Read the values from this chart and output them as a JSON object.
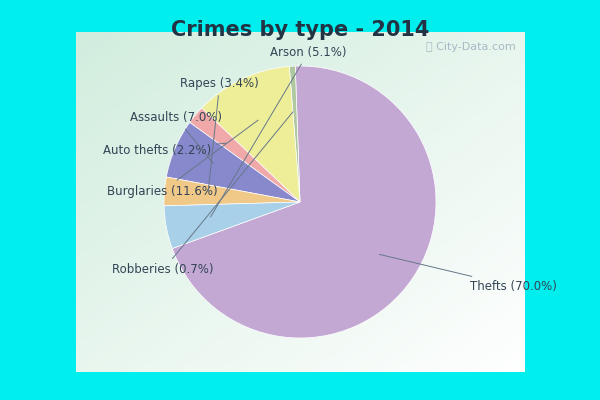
{
  "title": "Crimes by type - 2014",
  "slices": [
    {
      "label": "Thefts",
      "pct": 70.0,
      "color": "#C4A8D4"
    },
    {
      "label": "Robberies",
      "pct": 0.7,
      "color": "#B0C8A0"
    },
    {
      "label": "Burglaries",
      "pct": 11.6,
      "color": "#EEEE99"
    },
    {
      "label": "Auto thefts",
      "pct": 2.2,
      "color": "#F0A8A8"
    },
    {
      "label": "Assaults",
      "pct": 7.0,
      "color": "#8888CC"
    },
    {
      "label": "Rapes",
      "pct": 3.4,
      "color": "#F0C888"
    },
    {
      "label": "Arson",
      "pct": 5.1,
      "color": "#A8D0E8"
    }
  ],
  "border_color": "#00EEEE",
  "inner_bg": "#D0E8DC",
  "title_fontsize": 15,
  "label_fontsize": 8.5,
  "watermark": "ⓘ City-Data.com",
  "label_positions": {
    "Thefts": [
      1.25,
      -0.62,
      "left"
    ],
    "Robberies": [
      -1.38,
      -0.5,
      "left"
    ],
    "Burglaries": [
      -1.42,
      0.08,
      "left"
    ],
    "Auto thefts": [
      -1.45,
      0.38,
      "left"
    ],
    "Assaults": [
      -1.25,
      0.62,
      "left"
    ],
    "Rapes": [
      -0.88,
      0.87,
      "left"
    ],
    "Arson": [
      -0.22,
      1.1,
      "left"
    ]
  }
}
